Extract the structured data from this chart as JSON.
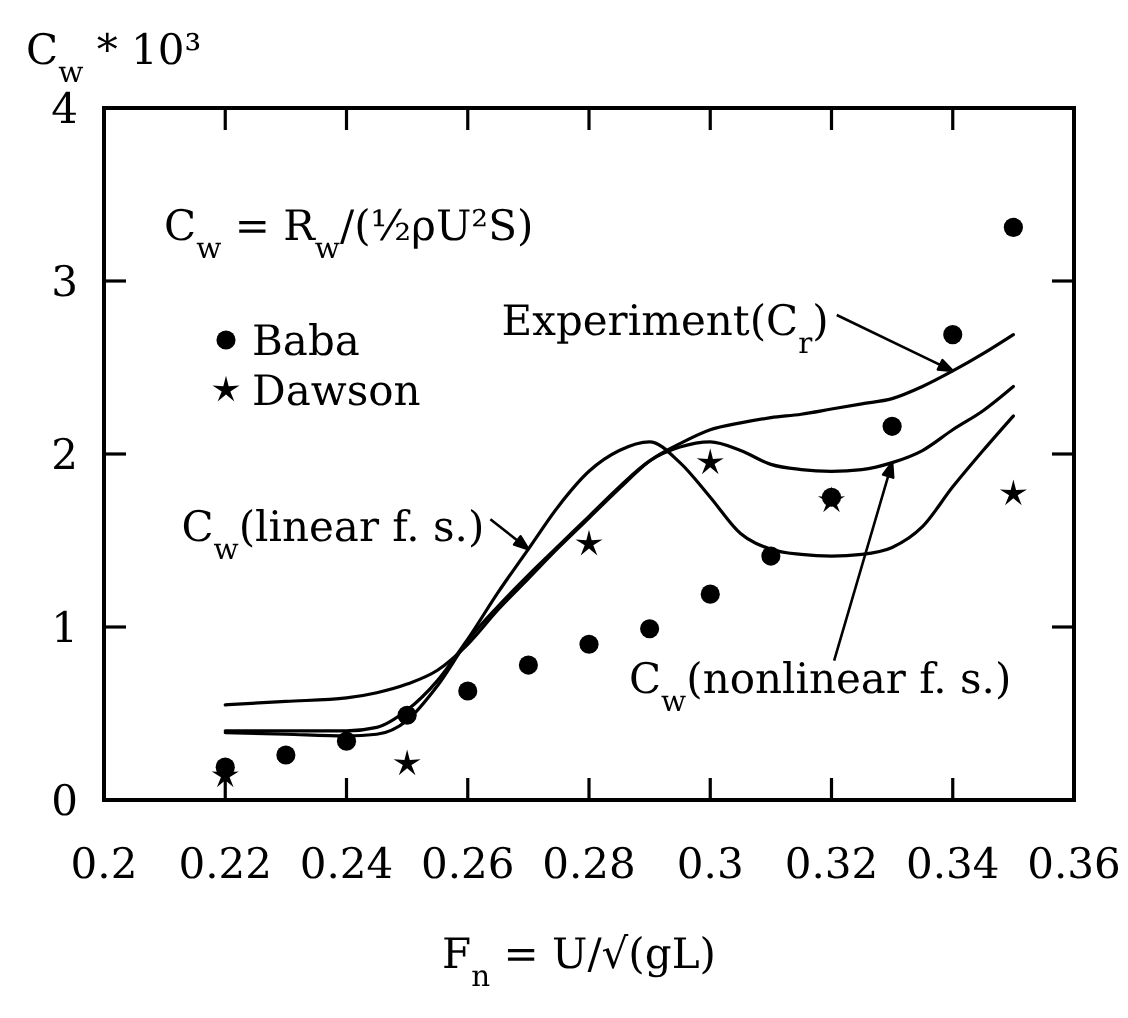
{
  "chart_data": {
    "type": "line",
    "xlabel": "F$_{n}$ = U/√(gL)",
    "ylabel": "C$_{w}$ * 10³",
    "xlim": [
      0.2,
      0.36
    ],
    "xticks": [
      0.2,
      0.22,
      0.24,
      0.26,
      0.28,
      0.3,
      0.32,
      0.34,
      0.36
    ],
    "ylim": [
      0,
      4
    ],
    "yticks": [
      0,
      1,
      2,
      3,
      4
    ],
    "legend": "top left",
    "annotations": [
      "C$_{w}$ = R$_{w}$/(½ρU²S)",
      {
        "text": "Experiment(C$_{r}$)",
        "x": 0.34,
        "y": 2.48
      },
      {
        "text": "C$_{w}$(linear f. s.)",
        "x": 0.27,
        "y": 1.45
      },
      {
        "text": "C$_{w}$(nonlinear f. s.)",
        "x": 0.33,
        "y": 1.95
      }
    ],
    "series": [
      {
        "color": "#000000",
        "x": [
          0.22,
          0.23,
          0.24,
          0.245,
          0.25,
          0.255,
          0.26,
          0.265,
          0.27,
          0.275,
          0.28,
          0.285,
          0.29,
          0.295,
          0.3,
          0.305,
          0.31,
          0.315,
          0.32,
          0.325,
          0.33,
          0.335,
          0.34,
          0.345,
          0.35
        ],
        "values": [
          0.55,
          0.57,
          0.59,
          0.62,
          0.67,
          0.75,
          0.9,
          1.1,
          1.28,
          1.46,
          1.63,
          1.8,
          1.96,
          2.06,
          2.14,
          2.18,
          2.21,
          2.23,
          2.26,
          2.29,
          2.32,
          2.39,
          2.48,
          2.58,
          2.69
        ]
      },
      {
        "color": "#000000",
        "x": [
          0.22,
          0.23,
          0.24,
          0.245,
          0.25,
          0.255,
          0.26,
          0.265,
          0.27,
          0.275,
          0.28,
          0.285,
          0.29,
          0.295,
          0.3,
          0.305,
          0.31,
          0.315,
          0.32,
          0.325,
          0.33,
          0.335,
          0.34,
          0.345,
          0.35
        ],
        "values": [
          0.4,
          0.4,
          0.4,
          0.42,
          0.52,
          0.69,
          0.93,
          1.2,
          1.45,
          1.7,
          1.9,
          2.02,
          2.07,
          1.95,
          1.75,
          1.54,
          1.45,
          1.42,
          1.41,
          1.42,
          1.46,
          1.58,
          1.81,
          2.02,
          2.22
        ]
      },
      {
        "color": "#000000",
        "x": [
          0.22,
          0.23,
          0.24,
          0.245,
          0.25,
          0.255,
          0.26,
          0.265,
          0.27,
          0.275,
          0.28,
          0.285,
          0.29,
          0.295,
          0.3,
          0.305,
          0.31,
          0.315,
          0.32,
          0.325,
          0.33,
          0.335,
          0.34,
          0.345,
          0.35
        ],
        "values": [
          0.39,
          0.38,
          0.37,
          0.38,
          0.46,
          0.66,
          0.92,
          1.12,
          1.3,
          1.47,
          1.64,
          1.81,
          1.96,
          2.04,
          2.07,
          2.02,
          1.94,
          1.91,
          1.9,
          1.91,
          1.95,
          2.02,
          2.14,
          2.25,
          2.39
        ]
      },
      {
        "type": "scatter",
        "name": "Baba",
        "marker": "circle",
        "color": "#000000",
        "x": [
          0.22,
          0.23,
          0.24,
          0.25,
          0.26,
          0.27,
          0.28,
          0.29,
          0.3,
          0.31,
          0.32,
          0.33,
          0.34,
          0.35
        ],
        "values": [
          0.19,
          0.26,
          0.34,
          0.49,
          0.63,
          0.78,
          0.9,
          0.99,
          1.19,
          1.41,
          1.75,
          2.16,
          2.69,
          3.31
        ]
      },
      {
        "type": "scatter",
        "name": "Dawson",
        "marker": "star",
        "color": "#000000",
        "x": [
          0.22,
          0.25,
          0.28,
          0.3,
          0.32,
          0.35
        ],
        "values": [
          0.14,
          0.21,
          1.48,
          1.95,
          1.73,
          1.77
        ]
      }
    ]
  }
}
